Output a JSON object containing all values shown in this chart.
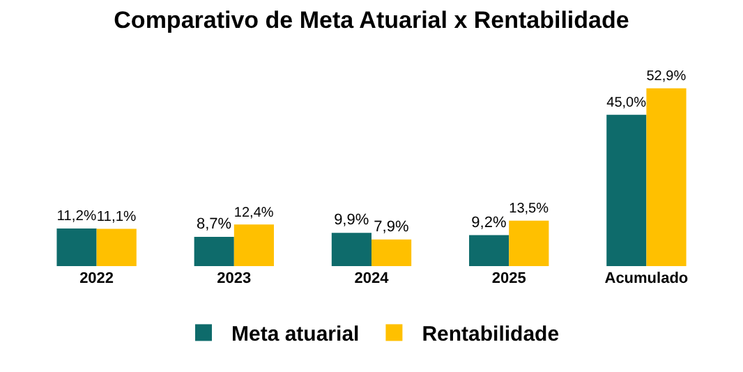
{
  "chart_data": {
    "type": "bar",
    "title": "Comparativo de Meta Atuarial x Rentabilidade",
    "categories": [
      "2022",
      "2023",
      "2024",
      "2025",
      "Acumulado"
    ],
    "series": [
      {
        "name": "Meta atuarial",
        "color": "#0e6b6b",
        "values": [
          11.2,
          8.7,
          9.9,
          9.2,
          45.0
        ],
        "value_labels": [
          "11,2%",
          "8,7%",
          "9,9%",
          "9,2%",
          "45,0%"
        ]
      },
      {
        "name": "Rentabilidade",
        "color": "#ffc000",
        "values": [
          11.1,
          12.4,
          7.9,
          13.5,
          52.9
        ],
        "value_labels": [
          "11,1%",
          "12,4%",
          "7,9%",
          "13,5%",
          "52,9%"
        ]
      }
    ],
    "legend": "bottom",
    "grid": false
  }
}
